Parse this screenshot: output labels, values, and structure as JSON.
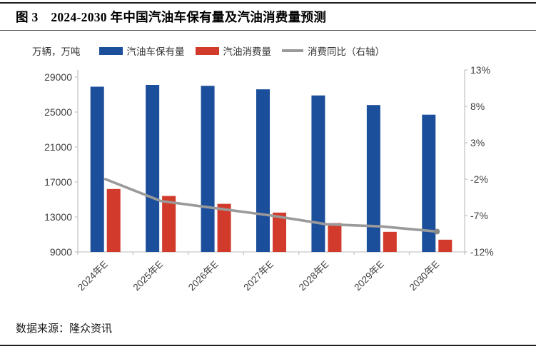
{
  "header": {
    "title": "图 3　2024-2030 年中国汽油车保有量及汽油消费量预测"
  },
  "chart": {
    "unit_label": "万辆，万吨",
    "legend": [
      {
        "label": "汽油车保有量",
        "type": "bar",
        "color": "#1B4E9B"
      },
      {
        "label": "汽油消费量",
        "type": "bar",
        "color": "#D23B2B"
      },
      {
        "label": "消费同比（右轴）",
        "type": "line",
        "color": "#9A9A9A"
      }
    ]
  },
  "chart_data": {
    "type": "bar",
    "subtype": "dual-axis bar + line combo",
    "title": "2024-2030 年中国汽油车保有量及汽油消费量预测",
    "categories": [
      "2024年E",
      "2025年E",
      "2026年E",
      "2027年E",
      "2028年E",
      "2029年E",
      "2030年E"
    ],
    "series": [
      {
        "name": "汽油车保有量",
        "type": "bar",
        "axis": "left",
        "color": "#1B4E9B",
        "values": [
          27900,
          28100,
          28000,
          27600,
          26900,
          25800,
          24700
        ]
      },
      {
        "name": "汽油消费量",
        "type": "bar",
        "axis": "left",
        "color": "#D23B2B",
        "values": [
          16200,
          15400,
          14500,
          13500,
          12300,
          11300,
          10400
        ]
      },
      {
        "name": "消费同比（右轴）",
        "type": "line",
        "axis": "right",
        "color": "#9A9A9A",
        "values": [
          -2.0,
          -5.0,
          -6.0,
          -7.0,
          -8.2,
          -8.5,
          -9.2
        ]
      }
    ],
    "left_axis": {
      "unit": "万辆，万吨",
      "min": 9000,
      "max": 29800,
      "ticks": [
        29000,
        25000,
        21000,
        17000,
        13000,
        9000
      ]
    },
    "right_axis": {
      "unit": "%",
      "min": -12,
      "max": 13,
      "tick_labels": [
        "13%",
        "8%",
        "3%",
        "-2%",
        "-7%",
        "-12%"
      ],
      "tick_values": [
        13,
        8,
        3,
        -2,
        -7,
        -12
      ]
    },
    "grid": false,
    "legend_position": "top",
    "line_end_marker": true
  },
  "footer": {
    "source": "数据来源：隆众资讯"
  }
}
